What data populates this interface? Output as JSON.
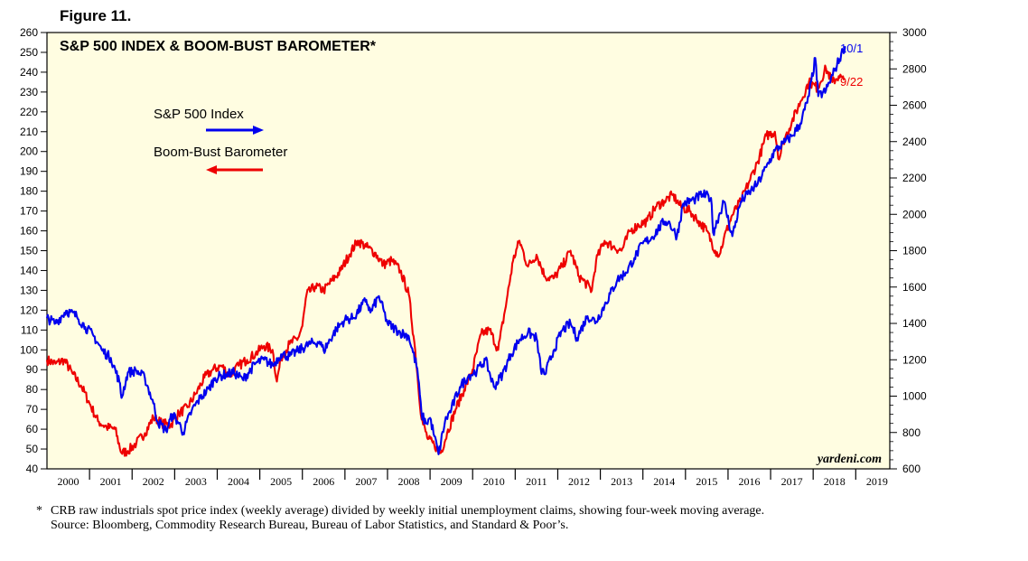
{
  "figure_label": "Figure 11.",
  "footnote": {
    "marker": "*",
    "line1": "CRB raw industrials spot price index (weekly average) divided by weekly initial unemployment claims, showing four-week moving average.",
    "line2": "Source: Bloomberg, Commodity Research Bureau, Bureau of Labor Statistics, and Standard & Poor’s."
  },
  "chart_data": {
    "type": "line",
    "title": "S&P 500 INDEX & BOOM-BUST BAROMETER*",
    "watermark": "yardeni.com",
    "x_ticks": [
      "2000",
      "2001",
      "2002",
      "2003",
      "2004",
      "2005",
      "2006",
      "2007",
      "2008",
      "2009",
      "2010",
      "2011",
      "2012",
      "2013",
      "2014",
      "2015",
      "2016",
      "2017",
      "2018",
      "2019"
    ],
    "xlim": [
      2000.0,
      2019.8
    ],
    "left_axis": {
      "ylim": [
        40,
        260
      ],
      "ticks": [
        40,
        50,
        60,
        70,
        80,
        90,
        100,
        110,
        120,
        130,
        140,
        150,
        160,
        170,
        180,
        190,
        200,
        210,
        220,
        230,
        240,
        250,
        260
      ]
    },
    "right_axis": {
      "ylim": [
        600,
        3000
      ],
      "ticks": [
        600,
        800,
        1000,
        1200,
        1400,
        1600,
        1800,
        2000,
        2200,
        2400,
        2600,
        2800,
        3000
      ]
    },
    "grid": false,
    "legend_placement": "top-left",
    "colors": {
      "plot_background": "#fffde1",
      "sp500": "#0000ee",
      "barometer": "#ee0000"
    },
    "series": [
      {
        "name": "S&P 500 Index",
        "axis": "right",
        "arrow": "right",
        "end_label": "10/1",
        "points": [
          [
            2000.0,
            1430
          ],
          [
            2000.2,
            1400
          ],
          [
            2000.45,
            1470
          ],
          [
            2000.7,
            1440
          ],
          [
            2000.9,
            1380
          ],
          [
            2001.1,
            1330
          ],
          [
            2001.3,
            1250
          ],
          [
            2001.5,
            1210
          ],
          [
            2001.7,
            1080
          ],
          [
            2001.75,
            990
          ],
          [
            2001.9,
            1130
          ],
          [
            2002.1,
            1140
          ],
          [
            2002.3,
            1100
          ],
          [
            2002.5,
            960
          ],
          [
            2002.6,
            860
          ],
          [
            2002.8,
            810
          ],
          [
            2002.95,
            900
          ],
          [
            2003.1,
            850
          ],
          [
            2003.2,
            800
          ],
          [
            2003.4,
            920
          ],
          [
            2003.6,
            990
          ],
          [
            2003.8,
            1040
          ],
          [
            2003.95,
            1100
          ],
          [
            2004.2,
            1120
          ],
          [
            2004.4,
            1130
          ],
          [
            2004.6,
            1090
          ],
          [
            2004.9,
            1180
          ],
          [
            2005.1,
            1200
          ],
          [
            2005.3,
            1170
          ],
          [
            2005.5,
            1230
          ],
          [
            2005.7,
            1220
          ],
          [
            2005.9,
            1250
          ],
          [
            2006.2,
            1290
          ],
          [
            2006.4,
            1300
          ],
          [
            2006.5,
            1250
          ],
          [
            2006.8,
            1370
          ],
          [
            2007.0,
            1420
          ],
          [
            2007.2,
            1430
          ],
          [
            2007.5,
            1530
          ],
          [
            2007.6,
            1460
          ],
          [
            2007.8,
            1550
          ],
          [
            2008.0,
            1400
          ],
          [
            2008.3,
            1350
          ],
          [
            2008.5,
            1330
          ],
          [
            2008.7,
            1150
          ],
          [
            2008.8,
            900
          ],
          [
            2008.9,
            850
          ],
          [
            2009.0,
            880
          ],
          [
            2009.1,
            780
          ],
          [
            2009.2,
            680
          ],
          [
            2009.35,
            860
          ],
          [
            2009.5,
            930
          ],
          [
            2009.7,
            1050
          ],
          [
            2009.9,
            1110
          ],
          [
            2010.1,
            1140
          ],
          [
            2010.3,
            1200
          ],
          [
            2010.5,
            1050
          ],
          [
            2010.7,
            1120
          ],
          [
            2010.9,
            1230
          ],
          [
            2011.1,
            1310
          ],
          [
            2011.3,
            1350
          ],
          [
            2011.5,
            1320
          ],
          [
            2011.6,
            1150
          ],
          [
            2011.7,
            1120
          ],
          [
            2011.9,
            1250
          ],
          [
            2012.1,
            1360
          ],
          [
            2012.3,
            1400
          ],
          [
            2012.45,
            1320
          ],
          [
            2012.7,
            1440
          ],
          [
            2012.9,
            1410
          ],
          [
            2013.1,
            1500
          ],
          [
            2013.4,
            1640
          ],
          [
            2013.6,
            1680
          ],
          [
            2013.8,
            1760
          ],
          [
            2014.0,
            1840
          ],
          [
            2014.2,
            1870
          ],
          [
            2014.5,
            1960
          ],
          [
            2014.6,
            1960
          ],
          [
            2014.8,
            1880
          ],
          [
            2014.95,
            2060
          ],
          [
            2015.2,
            2080
          ],
          [
            2015.4,
            2110
          ],
          [
            2015.6,
            2090
          ],
          [
            2015.65,
            1900
          ],
          [
            2015.9,
            2070
          ],
          [
            2016.1,
            1880
          ],
          [
            2016.3,
            2070
          ],
          [
            2016.5,
            2120
          ],
          [
            2016.7,
            2170
          ],
          [
            2016.9,
            2260
          ],
          [
            2017.1,
            2350
          ],
          [
            2017.3,
            2390
          ],
          [
            2017.5,
            2430
          ],
          [
            2017.7,
            2500
          ],
          [
            2017.9,
            2650
          ],
          [
            2018.05,
            2860
          ],
          [
            2018.12,
            2650
          ],
          [
            2018.3,
            2680
          ],
          [
            2018.5,
            2790
          ],
          [
            2018.7,
            2900
          ],
          [
            2018.75,
            2925
          ]
        ]
      },
      {
        "name": "Boom-Bust Barometer",
        "axis": "left",
        "arrow": "left",
        "end_label": "9/22",
        "points": [
          [
            2000.0,
            95
          ],
          [
            2000.2,
            93
          ],
          [
            2000.4,
            95
          ],
          [
            2000.6,
            88
          ],
          [
            2000.8,
            82
          ],
          [
            2001.0,
            73
          ],
          [
            2001.2,
            64
          ],
          [
            2001.4,
            61
          ],
          [
            2001.6,
            60
          ],
          [
            2001.75,
            48
          ],
          [
            2001.9,
            49
          ],
          [
            2002.1,
            53
          ],
          [
            2002.3,
            58
          ],
          [
            2002.5,
            66
          ],
          [
            2002.7,
            63
          ],
          [
            2002.9,
            62
          ],
          [
            2003.1,
            68
          ],
          [
            2003.3,
            71
          ],
          [
            2003.5,
            78
          ],
          [
            2003.7,
            86
          ],
          [
            2003.9,
            90
          ],
          [
            2004.1,
            92
          ],
          [
            2004.3,
            87
          ],
          [
            2004.5,
            92
          ],
          [
            2004.7,
            95
          ],
          [
            2004.9,
            98
          ],
          [
            2005.1,
            102
          ],
          [
            2005.3,
            100
          ],
          [
            2005.4,
            84
          ],
          [
            2005.5,
            96
          ],
          [
            2005.7,
            103
          ],
          [
            2005.9,
            106
          ],
          [
            2006.0,
            112
          ],
          [
            2006.1,
            128
          ],
          [
            2006.3,
            132
          ],
          [
            2006.5,
            130
          ],
          [
            2006.7,
            135
          ],
          [
            2006.9,
            140
          ],
          [
            2007.1,
            148
          ],
          [
            2007.3,
            155
          ],
          [
            2007.5,
            152
          ],
          [
            2007.7,
            149
          ],
          [
            2007.9,
            143
          ],
          [
            2008.1,
            145
          ],
          [
            2008.3,
            140
          ],
          [
            2008.5,
            128
          ],
          [
            2008.65,
            100
          ],
          [
            2008.8,
            65
          ],
          [
            2008.95,
            55
          ],
          [
            2009.1,
            52
          ],
          [
            2009.25,
            48
          ],
          [
            2009.4,
            58
          ],
          [
            2009.6,
            70
          ],
          [
            2009.8,
            80
          ],
          [
            2010.0,
            90
          ],
          [
            2010.2,
            108
          ],
          [
            2010.4,
            110
          ],
          [
            2010.6,
            100
          ],
          [
            2010.8,
            125
          ],
          [
            2010.95,
            145
          ],
          [
            2011.1,
            155
          ],
          [
            2011.3,
            142
          ],
          [
            2011.5,
            148
          ],
          [
            2011.7,
            137
          ],
          [
            2011.9,
            136
          ],
          [
            2012.1,
            142
          ],
          [
            2012.3,
            150
          ],
          [
            2012.5,
            137
          ],
          [
            2012.6,
            135
          ],
          [
            2012.8,
            130
          ],
          [
            2012.9,
            145
          ],
          [
            2013.1,
            155
          ],
          [
            2013.3,
            152
          ],
          [
            2013.5,
            150
          ],
          [
            2013.7,
            160
          ],
          [
            2013.9,
            163
          ],
          [
            2014.1,
            165
          ],
          [
            2014.3,
            172
          ],
          [
            2014.5,
            175
          ],
          [
            2014.7,
            178
          ],
          [
            2014.9,
            172
          ],
          [
            2015.1,
            170
          ],
          [
            2015.3,
            165
          ],
          [
            2015.5,
            160
          ],
          [
            2015.7,
            150
          ],
          [
            2015.8,
            148
          ],
          [
            2015.9,
            156
          ],
          [
            2016.1,
            168
          ],
          [
            2016.3,
            175
          ],
          [
            2016.5,
            185
          ],
          [
            2016.7,
            195
          ],
          [
            2016.9,
            208
          ],
          [
            2017.1,
            210
          ],
          [
            2017.2,
            196
          ],
          [
            2017.3,
            205
          ],
          [
            2017.5,
            215
          ],
          [
            2017.7,
            225
          ],
          [
            2017.9,
            235
          ],
          [
            2018.1,
            232
          ],
          [
            2018.3,
            242
          ],
          [
            2018.45,
            235
          ],
          [
            2018.6,
            238
          ],
          [
            2018.72,
            236
          ]
        ]
      }
    ]
  }
}
